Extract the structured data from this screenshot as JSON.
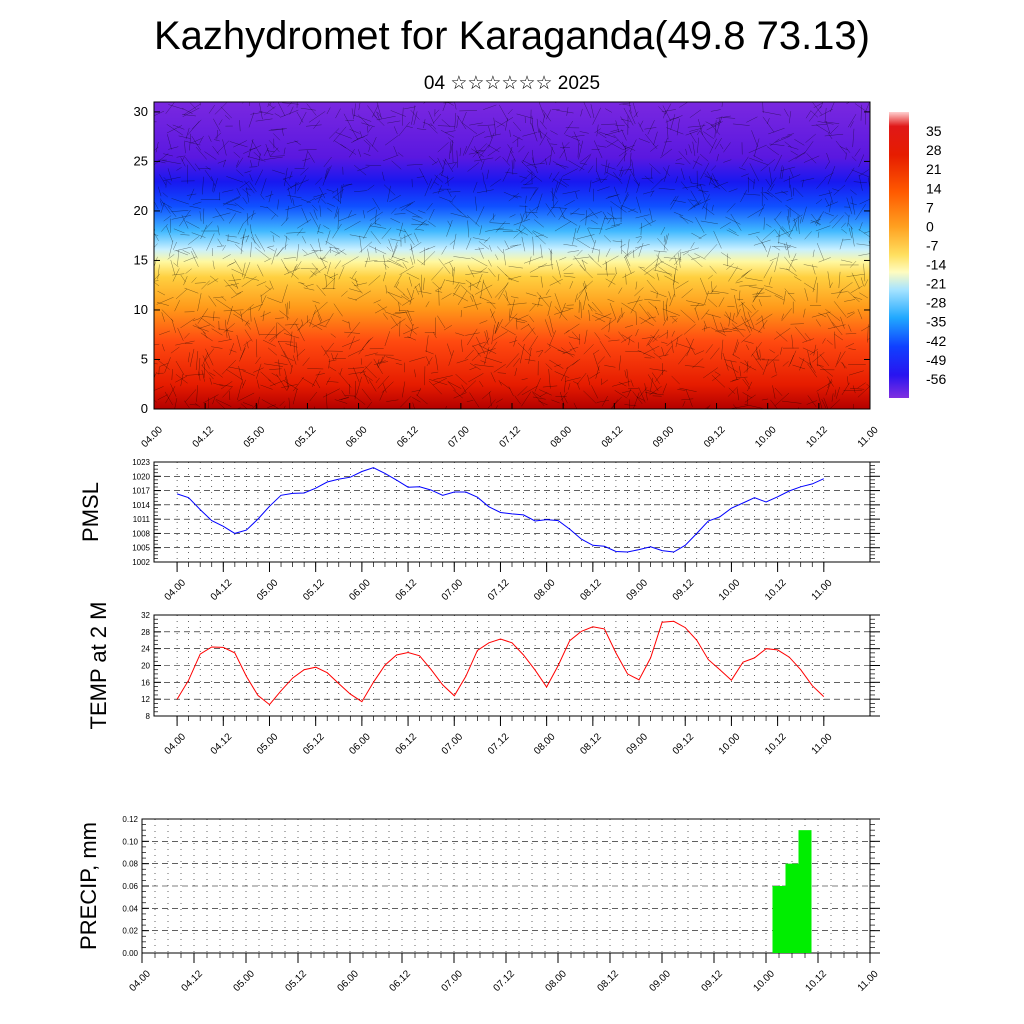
{
  "title": "Kazhydromet for Karaganda(49.8 73.13)",
  "subtitle": "04 ☆☆☆☆☆☆ 2025",
  "colors": {
    "pmsl_line": "#0000ff",
    "temp_line": "#ff0000",
    "precip_bar": "#00ee00"
  },
  "chart_data": [
    {
      "type": "heatmap",
      "y_ticks": [
        "0",
        "5",
        "10",
        "15",
        "20",
        "25",
        "30"
      ],
      "ylim": [
        0,
        31
      ],
      "x_ticks": [
        "04.00",
        "04.12",
        "05.00",
        "05.12",
        "06.00",
        "06.12",
        "07.00",
        "07.12",
        "08.00",
        "08.12",
        "09.00",
        "09.12",
        "10.00",
        "10.12",
        "11.00"
      ],
      "colorbar_labels": [
        "35",
        "28",
        "21",
        "14",
        "7",
        "0",
        "-7",
        "-14",
        "-21",
        "-28",
        "-35",
        "-42",
        "-49",
        "-56"
      ],
      "colorbar_range": [
        -63,
        42
      ]
    },
    {
      "type": "line",
      "ylabel": "PMSL",
      "ylim": [
        1002,
        1023
      ],
      "y_ticks": [
        "1023",
        "1020",
        "1017",
        "1014",
        "1011",
        "1008",
        "1005",
        "1002"
      ],
      "x_ticks": [
        "04.00",
        "04.12",
        "05.00",
        "05.12",
        "06.00",
        "06.12",
        "07.00",
        "07.12",
        "08.00",
        "08.12",
        "09.00",
        "09.12",
        "10.00",
        "10.12",
        "11.00"
      ],
      "x": [
        0,
        3,
        6,
        9,
        12,
        15,
        18,
        21,
        24,
        27,
        30,
        33,
        36,
        39,
        42,
        45,
        48,
        51,
        54,
        57,
        60,
        63,
        66,
        69,
        72,
        75,
        78,
        81,
        84,
        87,
        90,
        93,
        96,
        99,
        102,
        105,
        108,
        111,
        114,
        117,
        120,
        123,
        126,
        129,
        132,
        135,
        138,
        141,
        144,
        147,
        150,
        153,
        156,
        159,
        162,
        165,
        168
      ],
      "values": [
        1016.3,
        1015.5,
        1013,
        1010.7,
        1009.5,
        1008,
        1008.7,
        1011,
        1013.7,
        1016,
        1016.4,
        1016.5,
        1017.5,
        1018.8,
        1019.4,
        1019.8,
        1021,
        1021.8,
        1020.6,
        1019.2,
        1017.7,
        1017.8,
        1017.1,
        1016,
        1016.7,
        1016.7,
        1015.6,
        1013.6,
        1012.4,
        1012.1,
        1011.9,
        1010.6,
        1010.9,
        1010.7,
        1008.9,
        1006.8,
        1005.5,
        1005.3,
        1004.2,
        1004.1,
        1004.6,
        1005.2,
        1004.4,
        1004.1,
        1005.5,
        1008,
        1010.6,
        1011.5,
        1013.3,
        1014.4,
        1015.5,
        1014.6,
        1015.7,
        1016.9,
        1017.8,
        1018.4,
        1019.5
      ]
    },
    {
      "type": "line",
      "ylabel": "TEMP at 2 M",
      "ylim": [
        8,
        32
      ],
      "y_ticks": [
        "32",
        "28",
        "24",
        "20",
        "16",
        "12",
        "8"
      ],
      "x_ticks": [
        "04.00",
        "04.12",
        "05.00",
        "05.12",
        "06.00",
        "06.12",
        "07.00",
        "07.12",
        "08.00",
        "08.12",
        "09.00",
        "09.12",
        "10.00",
        "10.12",
        "11.00"
      ],
      "x": [
        0,
        3,
        6,
        9,
        12,
        15,
        18,
        21,
        24,
        27,
        30,
        33,
        36,
        39,
        42,
        45,
        48,
        51,
        54,
        57,
        60,
        63,
        66,
        69,
        72,
        75,
        78,
        81,
        84,
        87,
        90,
        93,
        96,
        99,
        102,
        105,
        108,
        111,
        114,
        117,
        120,
        123,
        126,
        129,
        132,
        135,
        138,
        141,
        144,
        147,
        150,
        153,
        156,
        159,
        162,
        165,
        168
      ],
      "values": [
        12,
        16.5,
        22.7,
        24.4,
        24.3,
        23,
        17.4,
        12.9,
        10.7,
        14,
        17,
        19,
        19.6,
        18.3,
        15.7,
        13.2,
        11.4,
        16,
        20.1,
        22.5,
        23.1,
        22.3,
        19,
        15.4,
        12.8,
        17.4,
        23.6,
        25.4,
        26.3,
        25.4,
        22.5,
        18.9,
        14.9,
        20,
        25.9,
        28.1,
        29.2,
        28.7,
        23,
        18,
        16.6,
        21.8,
        30.3,
        30.5,
        29,
        26,
        21.4,
        19,
        16.5,
        20.8,
        21.8,
        24,
        23.7,
        22,
        19,
        15.2,
        12.6
      ]
    },
    {
      "type": "bar",
      "ylabel": "PRECIP, mm",
      "ylim": [
        0,
        0.12
      ],
      "y_ticks": [
        "0.12",
        "0.10",
        "0.08",
        "0.06",
        "0.04",
        "0.02",
        "0.00"
      ],
      "x_ticks": [
        "04.00",
        "04.12",
        "05.00",
        "05.12",
        "06.00",
        "06.12",
        "07.00",
        "07.12",
        "08.00",
        "08.12",
        "09.00",
        "09.12",
        "10.00",
        "10.12",
        "11.00"
      ],
      "bars": [
        {
          "x": 147,
          "value": 0.06
        },
        {
          "x": 150,
          "value": 0.08
        },
        {
          "x": 153,
          "value": 0.11
        }
      ]
    }
  ]
}
